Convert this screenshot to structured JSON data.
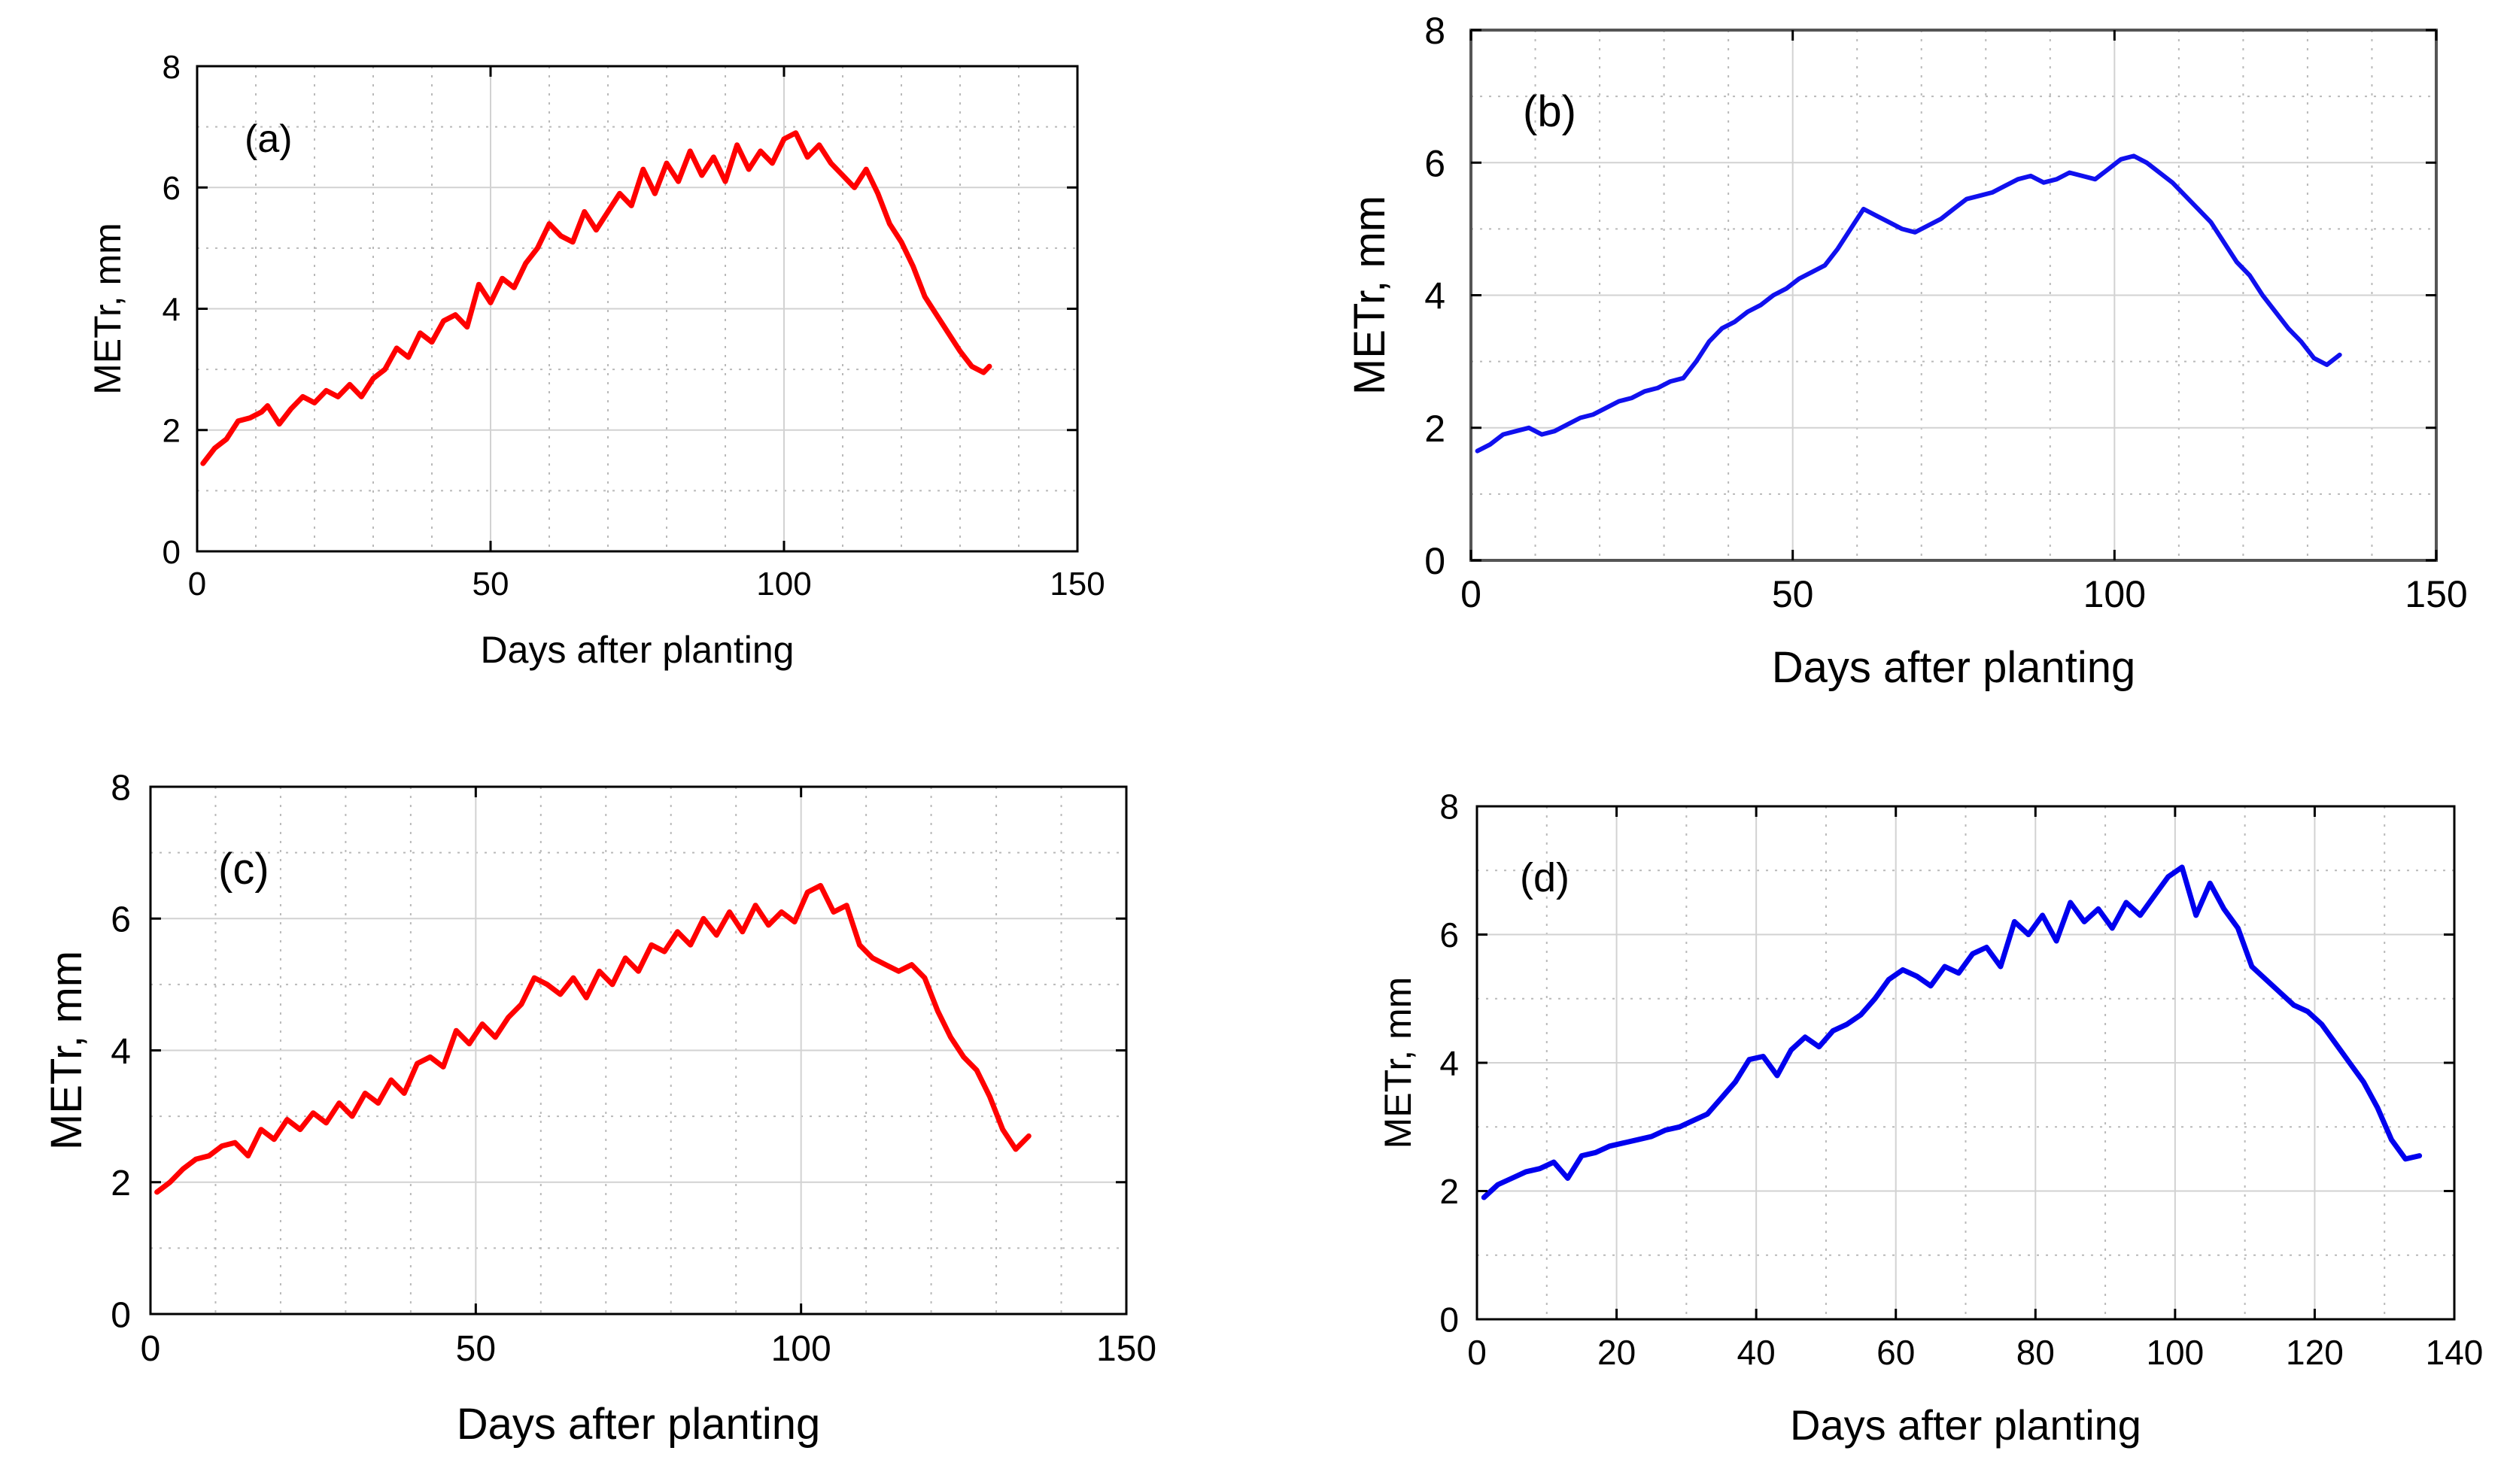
{
  "chart_data": [
    {
      "type": "line",
      "panel_label": "(a)",
      "xlabel": "Days after planting",
      "ylabel": "METr, mm",
      "xlim": [
        0,
        150
      ],
      "ylim": [
        0,
        8
      ],
      "xticks": [
        0,
        50,
        100,
        150
      ],
      "yticks": [
        0,
        2,
        4,
        6,
        8
      ],
      "grid": true,
      "color": "#ff0000",
      "series": [
        {
          "name": "METr",
          "x": [
            1,
            3,
            5,
            7,
            9,
            11,
            12,
            14,
            16,
            18,
            20,
            22,
            24,
            26,
            28,
            30,
            32,
            34,
            36,
            38,
            40,
            42,
            44,
            46,
            48,
            50,
            52,
            54,
            56,
            58,
            60,
            62,
            64,
            66,
            68,
            70,
            72,
            74,
            76,
            78,
            80,
            82,
            84,
            86,
            88,
            90,
            92,
            94,
            96,
            98,
            100,
            102,
            104,
            106,
            108,
            110,
            112,
            114,
            116,
            118,
            120,
            122,
            124,
            126,
            128,
            130,
            132,
            134,
            135
          ],
          "y": [
            1.45,
            1.7,
            1.85,
            2.15,
            2.2,
            2.3,
            2.4,
            2.1,
            2.35,
            2.55,
            2.45,
            2.65,
            2.55,
            2.75,
            2.55,
            2.85,
            3.0,
            3.35,
            3.2,
            3.6,
            3.45,
            3.8,
            3.9,
            3.7,
            4.4,
            4.1,
            4.5,
            4.35,
            4.75,
            5.0,
            5.4,
            5.2,
            5.1,
            5.6,
            5.3,
            5.6,
            5.9,
            5.7,
            6.3,
            5.9,
            6.4,
            6.1,
            6.6,
            6.2,
            6.5,
            6.1,
            6.7,
            6.3,
            6.6,
            6.4,
            6.8,
            6.9,
            6.5,
            6.7,
            6.4,
            6.2,
            6.0,
            6.3,
            5.9,
            5.4,
            5.1,
            4.7,
            4.2,
            3.9,
            3.6,
            3.3,
            3.05,
            2.95,
            3.05
          ]
        }
      ]
    },
    {
      "type": "line",
      "panel_label": "(b)",
      "xlabel": "Days after planting",
      "ylabel": "METr, mm",
      "xlim": [
        0,
        150
      ],
      "ylim": [
        0,
        8
      ],
      "xticks": [
        0,
        50,
        100,
        150
      ],
      "yticks": [
        0,
        2,
        4,
        6,
        8
      ],
      "grid": true,
      "color": "#1010ee",
      "series": [
        {
          "name": "METr",
          "x": [
            1,
            3,
            5,
            7,
            9,
            11,
            13,
            15,
            17,
            19,
            21,
            23,
            25,
            27,
            29,
            31,
            33,
            35,
            37,
            39,
            41,
            43,
            45,
            47,
            49,
            51,
            53,
            55,
            57,
            59,
            61,
            63,
            65,
            67,
            69,
            71,
            73,
            75,
            77,
            79,
            81,
            83,
            85,
            87,
            89,
            91,
            93,
            95,
            97,
            99,
            101,
            103,
            105,
            107,
            109,
            111,
            113,
            115,
            117,
            119,
            121,
            123,
            125,
            127,
            129,
            131,
            133,
            135
          ],
          "y": [
            1.65,
            1.75,
            1.9,
            1.95,
            2.0,
            1.9,
            1.95,
            2.05,
            2.15,
            2.2,
            2.3,
            2.4,
            2.45,
            2.55,
            2.6,
            2.7,
            2.75,
            3.0,
            3.3,
            3.5,
            3.6,
            3.75,
            3.85,
            4.0,
            4.1,
            4.25,
            4.35,
            4.45,
            4.7,
            5.0,
            5.3,
            5.2,
            5.1,
            5.0,
            4.95,
            5.05,
            5.15,
            5.3,
            5.45,
            5.5,
            5.55,
            5.65,
            5.75,
            5.8,
            5.7,
            5.75,
            5.85,
            5.8,
            5.75,
            5.9,
            6.05,
            6.1,
            6.0,
            5.85,
            5.7,
            5.5,
            5.3,
            5.1,
            4.8,
            4.5,
            4.3,
            4.0,
            3.75,
            3.5,
            3.3,
            3.05,
            2.95,
            3.1
          ]
        }
      ]
    },
    {
      "type": "line",
      "panel_label": "(c)",
      "xlabel": "Days after planting",
      "ylabel": "METr,  mm",
      "xlim": [
        0,
        150
      ],
      "ylim": [
        0,
        8
      ],
      "xticks": [
        0,
        50,
        100,
        150
      ],
      "yticks": [
        0,
        2,
        4,
        6,
        8
      ],
      "grid": true,
      "color": "#ff0000",
      "series": [
        {
          "name": "METr",
          "x": [
            1,
            3,
            5,
            7,
            9,
            11,
            13,
            15,
            17,
            19,
            21,
            23,
            25,
            27,
            29,
            31,
            33,
            35,
            37,
            39,
            41,
            43,
            45,
            47,
            49,
            51,
            53,
            55,
            57,
            59,
            61,
            63,
            65,
            67,
            69,
            71,
            73,
            75,
            77,
            79,
            81,
            83,
            85,
            87,
            89,
            91,
            93,
            95,
            97,
            99,
            101,
            103,
            105,
            107,
            109,
            111,
            113,
            115,
            117,
            119,
            121,
            123,
            125,
            127,
            129,
            131,
            133,
            135
          ],
          "y": [
            1.85,
            2.0,
            2.2,
            2.35,
            2.4,
            2.55,
            2.6,
            2.4,
            2.8,
            2.65,
            2.95,
            2.8,
            3.05,
            2.9,
            3.2,
            3.0,
            3.35,
            3.2,
            3.55,
            3.35,
            3.8,
            3.9,
            3.75,
            4.3,
            4.1,
            4.4,
            4.2,
            4.5,
            4.7,
            5.1,
            5.0,
            4.85,
            5.1,
            4.8,
            5.2,
            5.0,
            5.4,
            5.2,
            5.6,
            5.5,
            5.8,
            5.6,
            6.0,
            5.75,
            6.1,
            5.8,
            6.2,
            5.9,
            6.1,
            5.95,
            6.4,
            6.5,
            6.1,
            6.2,
            5.6,
            5.4,
            5.3,
            5.2,
            5.3,
            5.1,
            4.6,
            4.2,
            3.9,
            3.7,
            3.3,
            2.8,
            2.5,
            2.7
          ]
        }
      ]
    },
    {
      "type": "line",
      "panel_label": "(d)",
      "xlabel": "Days after planting",
      "ylabel": "METr, mm",
      "xlim": [
        0,
        140
      ],
      "ylim": [
        0,
        8
      ],
      "xticks": [
        0,
        20,
        40,
        60,
        80,
        100,
        120,
        140
      ],
      "yticks": [
        0,
        2,
        4,
        6,
        8
      ],
      "grid": true,
      "color": "#0000ee",
      "series": [
        {
          "name": "METr",
          "x": [
            1,
            3,
            5,
            7,
            9,
            11,
            13,
            15,
            17,
            19,
            21,
            23,
            25,
            27,
            29,
            31,
            33,
            35,
            37,
            39,
            41,
            43,
            45,
            47,
            49,
            51,
            53,
            55,
            57,
            59,
            61,
            63,
            65,
            67,
            69,
            71,
            73,
            75,
            77,
            79,
            81,
            83,
            85,
            87,
            89,
            91,
            93,
            95,
            97,
            99,
            101,
            103,
            105,
            107,
            109,
            111,
            113,
            115,
            117,
            119,
            121,
            123,
            125,
            127,
            129,
            131,
            133,
            135
          ],
          "y": [
            1.9,
            2.1,
            2.2,
            2.3,
            2.35,
            2.45,
            2.2,
            2.55,
            2.6,
            2.7,
            2.75,
            2.8,
            2.85,
            2.95,
            3.0,
            3.1,
            3.2,
            3.45,
            3.7,
            4.05,
            4.1,
            3.8,
            4.2,
            4.4,
            4.25,
            4.5,
            4.6,
            4.75,
            5.0,
            5.3,
            5.45,
            5.35,
            5.2,
            5.5,
            5.4,
            5.7,
            5.8,
            5.5,
            6.2,
            6.0,
            6.3,
            5.9,
            6.5,
            6.2,
            6.4,
            6.1,
            6.5,
            6.3,
            6.6,
            6.9,
            7.05,
            6.3,
            6.8,
            6.4,
            6.1,
            5.5,
            5.3,
            5.1,
            4.9,
            4.8,
            4.6,
            4.3,
            4.0,
            3.7,
            3.3,
            2.8,
            2.5,
            2.55
          ]
        }
      ]
    }
  ]
}
